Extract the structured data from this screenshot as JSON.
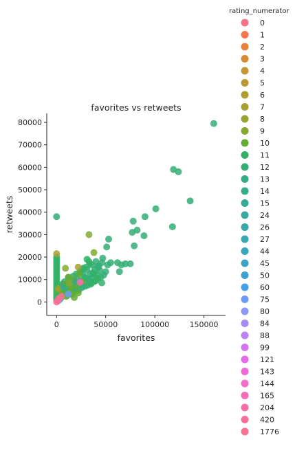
{
  "chart_data": {
    "type": "scatter",
    "title": "favorites vs retweets",
    "xlabel": "favorites",
    "ylabel": "retweets",
    "xlim": [
      -10000,
      172000
    ],
    "ylim": [
      -6000,
      84000
    ],
    "xticks": [
      0,
      50000,
      100000,
      150000
    ],
    "xtick_labels": [
      "0",
      "50000",
      "100000",
      "150000"
    ],
    "yticks": [
      0,
      10000,
      20000,
      30000,
      40000,
      50000,
      60000,
      70000,
      80000
    ],
    "ytick_labels": [
      "0",
      "10000",
      "20000",
      "30000",
      "40000",
      "50000",
      "60000",
      "70000",
      "80000"
    ],
    "legend": {
      "title": "rating_numerator",
      "placement": "right",
      "entries": [
        {
          "label": "0",
          "color": "#f77189"
        },
        {
          "label": "1",
          "color": "#f7754f"
        },
        {
          "label": "2",
          "color": "#e8823c"
        },
        {
          "label": "3",
          "color": "#d58c32"
        },
        {
          "label": "4",
          "color": "#c49634"
        },
        {
          "label": "5",
          "color": "#bb9832"
        },
        {
          "label": "6",
          "color": "#b19c31"
        },
        {
          "label": "7",
          "color": "#a6a030"
        },
        {
          "label": "8",
          "color": "#97a431"
        },
        {
          "label": "9",
          "color": "#84a931"
        },
        {
          "label": "10",
          "color": "#64ab31"
        },
        {
          "label": "11",
          "color": "#32b166"
        },
        {
          "label": "12",
          "color": "#34ae75"
        },
        {
          "label": "13",
          "color": "#35ab83"
        },
        {
          "label": "14",
          "color": "#36ad8d"
        },
        {
          "label": "15",
          "color": "#37ab97"
        },
        {
          "label": "24",
          "color": "#38aaa0"
        },
        {
          "label": "26",
          "color": "#38a9a9"
        },
        {
          "label": "27",
          "color": "#39a8b1"
        },
        {
          "label": "44",
          "color": "#3aa7bb"
        },
        {
          "label": "45",
          "color": "#3ba4c6"
        },
        {
          "label": "50",
          "color": "#3da1d3"
        },
        {
          "label": "60",
          "color": "#45a0e5"
        },
        {
          "label": "75",
          "color": "#6e9bf4"
        },
        {
          "label": "80",
          "color": "#8f98f5"
        },
        {
          "label": "84",
          "color": "#a48cf4"
        },
        {
          "label": "88",
          "color": "#bb82f3"
        },
        {
          "label": "99",
          "color": "#d174ef"
        },
        {
          "label": "121",
          "color": "#e46ae7"
        },
        {
          "label": "143",
          "color": "#f168d6"
        },
        {
          "label": "144",
          "color": "#f46cc7"
        },
        {
          "label": "165",
          "color": "#f56db6"
        },
        {
          "label": "204",
          "color": "#f66ea6"
        },
        {
          "label": "420",
          "color": "#f6709a"
        },
        {
          "label": "1776",
          "color": "#f77190"
        }
      ]
    },
    "series": [
      {
        "name": "12",
        "color": "#34ae75",
        "points": [
          [
            160000,
            79500
          ],
          [
            119000,
            59000
          ],
          [
            124000,
            58000
          ],
          [
            136000,
            45000
          ],
          [
            101000,
            41500
          ],
          [
            90000,
            38000
          ],
          [
            78000,
            36000
          ],
          [
            118000,
            33500
          ],
          [
            82000,
            32000
          ],
          [
            53000,
            28000
          ],
          [
            77000,
            31000
          ],
          [
            89000,
            29500
          ],
          [
            79000,
            25000
          ],
          [
            51000,
            24500
          ],
          [
            0,
            38000
          ],
          [
            62000,
            17500
          ],
          [
            70000,
            17000
          ],
          [
            66000,
            16500
          ],
          [
            64000,
            13500
          ],
          [
            75000,
            17000
          ],
          [
            55000,
            17500
          ],
          [
            52000,
            16500
          ],
          [
            46000,
            17500
          ],
          [
            43000,
            16000
          ],
          [
            40000,
            18000
          ],
          [
            44000,
            14000
          ],
          [
            41000,
            12000
          ],
          [
            37000,
            13000
          ],
          [
            36000,
            11000
          ],
          [
            33000,
            10000
          ],
          [
            30000,
            10500
          ],
          [
            28000,
            11000
          ],
          [
            25000,
            9500
          ],
          [
            22000,
            8000
          ],
          [
            19000,
            7000
          ],
          [
            16000,
            6000
          ],
          [
            13000,
            5000
          ],
          [
            10000,
            4000
          ],
          [
            8000,
            3500
          ],
          [
            6000,
            2500
          ],
          [
            4000,
            1500
          ],
          [
            2500,
            1000
          ],
          [
            1500,
            500
          ],
          [
            45000,
            11000
          ],
          [
            48000,
            12000
          ],
          [
            50000,
            13500
          ],
          [
            38000,
            9000
          ],
          [
            35000,
            8500
          ],
          [
            32000,
            7500
          ],
          [
            29000,
            7000
          ],
          [
            26000,
            6500
          ],
          [
            23000,
            5500
          ],
          [
            20000,
            5000
          ],
          [
            17000,
            4500
          ],
          [
            14000,
            3500
          ],
          [
            11000,
            3000
          ],
          [
            34000,
            12500
          ],
          [
            31000,
            14500
          ],
          [
            27000,
            12500
          ],
          [
            24000,
            13500
          ],
          [
            21000,
            10500
          ],
          [
            18000,
            9500
          ],
          [
            15000,
            8500
          ],
          [
            12000,
            11000
          ],
          [
            9000,
            6500
          ],
          [
            7000,
            7500
          ],
          [
            5000,
            5500
          ],
          [
            3000,
            4500
          ],
          [
            47000,
            19500
          ],
          [
            42000,
            15500
          ],
          [
            39000,
            14500
          ],
          [
            36000,
            16500
          ],
          [
            33000,
            18000
          ],
          [
            30000,
            15500
          ],
          [
            26000,
            14500
          ],
          [
            20000,
            12500
          ],
          [
            17000,
            11500
          ],
          [
            14000,
            9500
          ],
          [
            11000,
            8000
          ],
          [
            8000,
            9000
          ],
          [
            6000,
            8000
          ],
          [
            4000,
            6500
          ],
          [
            2000,
            3500
          ],
          [
            1000,
            2000
          ]
        ]
      },
      {
        "name": "11",
        "color": "#32b166",
        "points": [
          [
            0,
            20000
          ],
          [
            0,
            19000
          ],
          [
            0,
            18000
          ],
          [
            0,
            17000
          ],
          [
            0,
            16000
          ],
          [
            0,
            15000
          ],
          [
            0,
            14000
          ],
          [
            0,
            13000
          ],
          [
            0,
            12000
          ],
          [
            0,
            11000
          ],
          [
            0,
            10000
          ],
          [
            0,
            9000
          ],
          [
            0,
            8000
          ],
          [
            0,
            7000
          ],
          [
            0,
            6000
          ],
          [
            0,
            5000
          ],
          [
            0,
            4000
          ],
          [
            0,
            3000
          ],
          [
            0,
            2000
          ],
          [
            0,
            1000
          ],
          [
            31000,
            19000
          ],
          [
            34000,
            17000
          ],
          [
            27000,
            15000
          ],
          [
            38000,
            12500
          ],
          [
            42000,
            10500
          ],
          [
            29000,
            9000
          ],
          [
            35000,
            8000
          ],
          [
            24000,
            8000
          ],
          [
            40000,
            9500
          ],
          [
            46000,
            8500
          ]
        ]
      },
      {
        "name": "10",
        "color": "#64ab31",
        "points": [
          [
            12000,
            11000
          ],
          [
            17000,
            10000
          ],
          [
            23000,
            12500
          ],
          [
            9000,
            8000
          ],
          [
            14000,
            6000
          ],
          [
            20000,
            7500
          ],
          [
            26000,
            9000
          ],
          [
            6000,
            4000
          ],
          [
            10000,
            2500
          ],
          [
            16000,
            3500
          ],
          [
            3000,
            1000
          ],
          [
            1000,
            5000
          ],
          [
            22000,
            4000
          ],
          [
            18000,
            2000
          ]
        ]
      },
      {
        "name": "9",
        "color": "#84a931",
        "points": [
          [
            38000,
            22000
          ],
          [
            33000,
            30000
          ],
          [
            9000,
            15000
          ],
          [
            13000,
            8500
          ]
        ]
      },
      {
        "name": "7",
        "color": "#a6a030",
        "points": [
          [
            0,
            21500
          ],
          [
            22000,
            15500
          ],
          [
            2000,
            6000
          ]
        ]
      },
      {
        "name": "13",
        "color": "#35ab83",
        "points": [
          [
            7000,
            6500
          ],
          [
            19000,
            9000
          ]
        ]
      },
      {
        "name": "75",
        "color": "#6e9bf4",
        "points": [
          [
            12000,
            3500
          ],
          [
            3000,
            1000
          ]
        ]
      },
      {
        "name": "80",
        "color": "#8f98f5",
        "points": [
          [
            2500,
            1200
          ]
        ]
      },
      {
        "name": "165",
        "color": "#f56db6",
        "points": [
          [
            24000,
            8800
          ]
        ]
      },
      {
        "name": "1776",
        "color": "#f77190",
        "points": [
          [
            5000,
            2500
          ],
          [
            2000,
            1500
          ],
          [
            1000,
            500
          ]
        ]
      },
      {
        "name": "420",
        "color": "#f6709a",
        "points": [
          [
            0,
            0
          ]
        ]
      }
    ]
  }
}
